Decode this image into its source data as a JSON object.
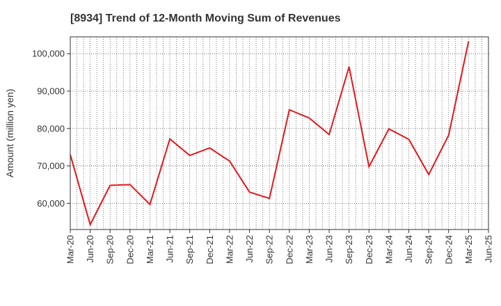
{
  "chart_data": {
    "type": "line",
    "title": "[8934]  Trend of 12-Month Moving Sum of Revenues",
    "xlabel": "",
    "ylabel": "Amount (million yen)",
    "ylim": [
      53000,
      104500
    ],
    "yticks": [
      60000,
      70000,
      80000,
      90000,
      100000
    ],
    "ytick_labels": [
      "60,000",
      "70,000",
      "80,000",
      "90,000",
      "100,000"
    ],
    "xtick_labels": [
      "Mar-20",
      "Jun-20",
      "Sep-20",
      "Dec-20",
      "Mar-21",
      "Jun-21",
      "Sep-21",
      "Dec-21",
      "Mar-22",
      "Jun-22",
      "Sep-22",
      "Dec-22",
      "Mar-23",
      "Jun-23",
      "Sep-23",
      "Dec-23",
      "Mar-24",
      "Jun-24",
      "Sep-24",
      "Dec-24",
      "Mar-25",
      "Jun-25"
    ],
    "grid": true,
    "series": [
      {
        "color": "#e3171b",
        "x": [
          "Mar-20",
          "Jun-20",
          "Sep-20",
          "Dec-20",
          "Mar-21",
          "Jun-21",
          "Sep-21",
          "Dec-21",
          "Mar-22",
          "Jun-22",
          "Sep-22",
          "Dec-22",
          "Mar-23",
          "Jun-23",
          "Sep-23",
          "Dec-23",
          "Mar-24",
          "Jun-24",
          "Sep-24",
          "Dec-24",
          "Mar-25"
        ],
        "values": [
          73000,
          54300,
          64800,
          65000,
          59700,
          77200,
          72800,
          74800,
          71300,
          63000,
          61300,
          85000,
          82800,
          78400,
          96500,
          69800,
          79900,
          77100,
          67700,
          78200,
          103300
        ]
      }
    ]
  }
}
